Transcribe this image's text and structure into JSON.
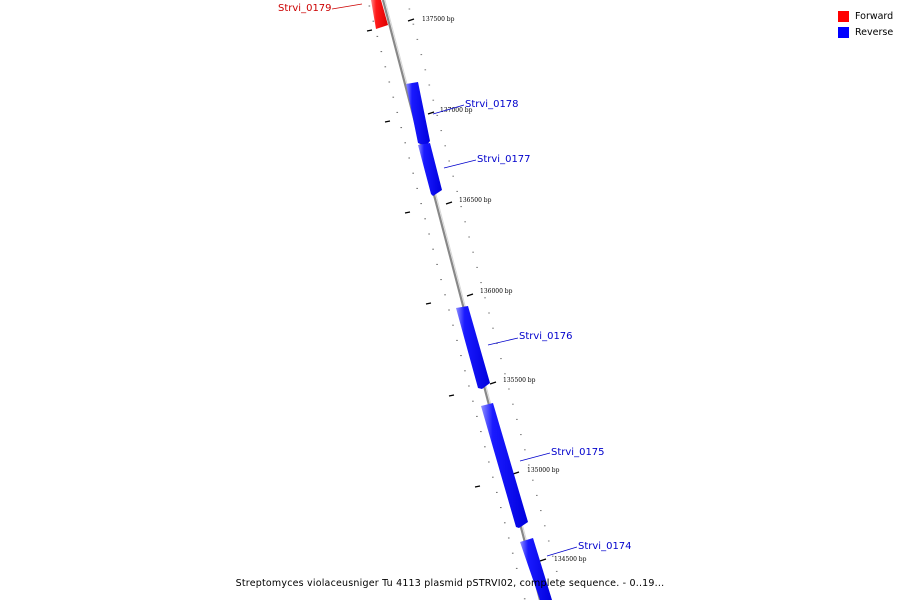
{
  "legend": [
    {
      "label": "Forward",
      "color": "#ff0000"
    },
    {
      "label": "Reverse",
      "color": "#0000ff"
    }
  ],
  "caption": "Streptomyces violaceusniger Tu 4113 plasmid pSTRVI02, complete sequence. - 0..19...",
  "colors": {
    "forward": "#ff0000",
    "reverse": "#0000ff",
    "backbone": "#888888",
    "forward_label": "#cc0000",
    "reverse_label": "#0000cc"
  },
  "ticks": [
    {
      "label": "137500 bp"
    },
    {
      "label": "137000 bp"
    },
    {
      "label": "136500 bp"
    },
    {
      "label": "136000 bp"
    },
    {
      "label": "135500 bp"
    },
    {
      "label": "135000 bp"
    },
    {
      "label": "134500 bp"
    }
  ],
  "genes": [
    {
      "name": "Strvi_0179",
      "strand": "forward"
    },
    {
      "name": "Strvi_0178",
      "strand": "reverse"
    },
    {
      "name": "Strvi_0177",
      "strand": "reverse"
    },
    {
      "name": "Strvi_0176",
      "strand": "reverse"
    },
    {
      "name": "Strvi_0175",
      "strand": "reverse"
    },
    {
      "name": "Strvi_0174",
      "strand": "reverse"
    }
  ]
}
